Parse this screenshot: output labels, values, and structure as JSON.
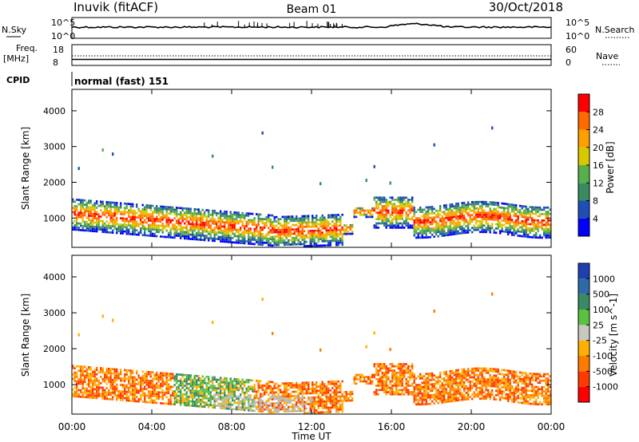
{
  "header": {
    "station": "Inuvik (fitACF)",
    "beam": "Beam 01",
    "date": "30/Oct/2018"
  },
  "strips": {
    "nsky_label": "N.Sky",
    "nsky_ticks": [
      "10^5",
      "10^0"
    ],
    "nsearch_label": "N.Search",
    "nsearch_ticks": [
      "10^5",
      "10^0"
    ],
    "freq_label": "Freq.",
    "freq_unit": "[MHz]",
    "freq_ticks": [
      "18",
      "8"
    ],
    "nave_label": "Nave",
    "nave_ticks": [
      "60",
      "0"
    ],
    "cpid_label": "CPID",
    "cpid_value": "normal (fast) 151"
  },
  "chart_data": [
    {
      "type": "heatmap",
      "quantity": "power",
      "ylabel": "Slant Range [km]",
      "xlabel": "Time UT",
      "x_ticks": [
        "00:00",
        "04:00",
        "08:00",
        "12:00",
        "16:00",
        "20:00",
        "00:00"
      ],
      "y_ticks": [
        1000,
        2000,
        3000,
        4000
      ],
      "ylim": [
        180,
        4600
      ],
      "colorbar_label": "Power [dB]",
      "colorbar_ticks": [
        "4",
        "8",
        "12",
        "16",
        "20",
        "24",
        "28"
      ],
      "colorbar_colors": [
        "#0000ff",
        "#1f4fb4",
        "#3a8a62",
        "#57b04a",
        "#d9c800",
        "#ffa000",
        "#ff6a00",
        "#ff0000"
      ]
    },
    {
      "type": "heatmap",
      "quantity": "velocity",
      "ylabel": "Slant Range [km]",
      "xlabel": "Time UT",
      "x_ticks": [
        "00:00",
        "04:00",
        "08:00",
        "12:00",
        "16:00",
        "20:00",
        "00:00"
      ],
      "y_ticks": [
        1000,
        2000,
        3000,
        4000
      ],
      "ylim": [
        180,
        4600
      ],
      "colorbar_label": "Velocity [m s^-1]",
      "colorbar_ticks": [
        "1000",
        "500",
        "100",
        "25",
        "-25",
        "-100",
        "-500",
        "-1000"
      ],
      "colorbar_colors": [
        "#1f3fb0",
        "#2f6aa8",
        "#3a8a62",
        "#5cc040",
        "#c8c8c0",
        "#ffb000",
        "#ff7a00",
        "#ff3a00",
        "#ff0000"
      ],
      "ground_scatter_color": "#b8b8b0"
    }
  ]
}
